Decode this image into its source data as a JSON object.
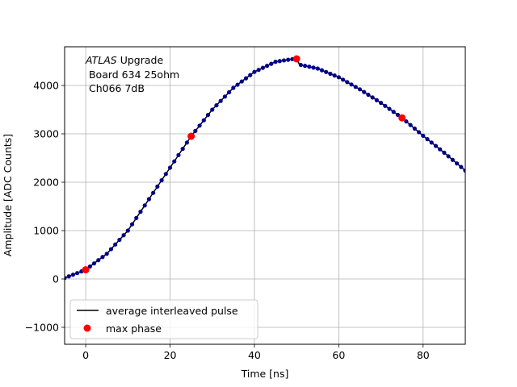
{
  "chart_data": {
    "type": "scatter",
    "xlabel": "Time [ns]",
    "ylabel": "Amplitude [ADC Counts]",
    "xlim": [
      -5,
      90
    ],
    "ylim": [
      -1350,
      4800
    ],
    "xticks": [
      0,
      20,
      40,
      60,
      80
    ],
    "yticks": [
      -1000,
      0,
      1000,
      2000,
      3000,
      4000
    ],
    "xtick_labels": [
      "0",
      "20",
      "40",
      "60",
      "80"
    ],
    "ytick_labels": [
      "−1000",
      "0",
      "1000",
      "2000",
      "3000",
      "4000"
    ],
    "grid": true,
    "annotation": {
      "line1_italic": "ATLAS",
      "line1_rest": " Upgrade",
      "line2": " Board 634 25ohm",
      "line3": " Ch066 7dB"
    },
    "legend": {
      "placement": "lower-left",
      "entries": [
        "average interleaved pulse",
        "max phase"
      ]
    },
    "colors": {
      "line": "#000000",
      "markers": "#00008b",
      "max_phase": "#ff0000",
      "grid": "#b0b0b0"
    },
    "series": [
      {
        "name": "average interleaved pulse",
        "style": "line+dots",
        "x": [
          -5,
          0,
          5,
          10,
          15,
          20,
          25,
          30,
          35,
          40,
          45,
          49,
          50,
          50.7,
          55,
          60,
          65,
          70,
          75,
          80,
          85,
          90
        ],
        "y": [
          20,
          190,
          520,
          1000,
          1650,
          2300,
          2950,
          3500,
          3950,
          4280,
          4490,
          4545,
          4550,
          4430,
          4350,
          4170,
          3920,
          3640,
          3330,
          2960,
          2610,
          2240
        ]
      },
      {
        "name": "max phase",
        "style": "markers",
        "x": [
          0,
          25,
          50,
          75
        ],
        "y": [
          190,
          2950,
          4550,
          3330
        ]
      }
    ]
  }
}
